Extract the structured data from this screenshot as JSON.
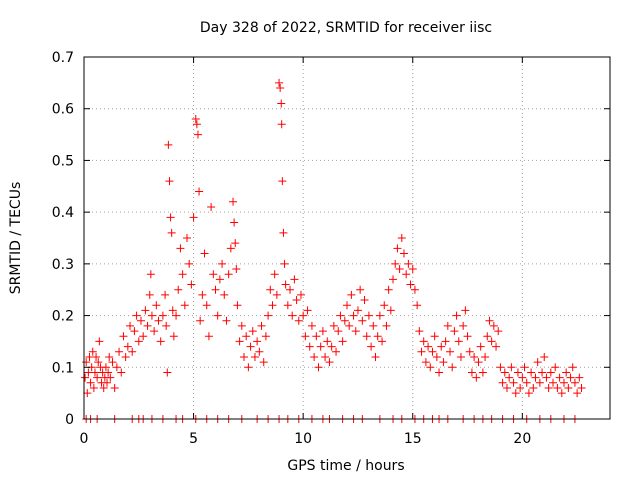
{
  "chart_data": {
    "type": "scatter",
    "title": "Day 328 of 2022, SRMTID for receiver iisc",
    "xlabel": "GPS time / hours",
    "ylabel": "SRMTID / TECUs",
    "xlim": [
      0,
      24
    ],
    "ylim": [
      0,
      0.7
    ],
    "xticks": [
      0,
      5,
      10,
      15,
      20
    ],
    "xtick_labels": [
      "0",
      "5",
      "10",
      "15",
      "20"
    ],
    "yticks": [
      0,
      0.1,
      0.2,
      0.3,
      0.4,
      0.5,
      0.6,
      0.7
    ],
    "ytick_labels": [
      "0",
      "0.1",
      "0.2",
      "0.3",
      "0.4",
      "0.5",
      "0.6",
      "0.7"
    ],
    "grid": true,
    "marker": "+",
    "color": "#ff0000",
    "series": [
      {
        "name": "SRMTID",
        "points": [
          [
            0.05,
            0.08
          ],
          [
            0.1,
            0.11
          ],
          [
            0.15,
            0.05
          ],
          [
            0.2,
            0.09
          ],
          [
            0.25,
            0.12
          ],
          [
            0.3,
            0.07
          ],
          [
            0.35,
            0.1
          ],
          [
            0.4,
            0.13
          ],
          [
            0.45,
            0.06
          ],
          [
            0.5,
            0.09
          ],
          [
            0.55,
            0.12
          ],
          [
            0.6,
            0.08
          ],
          [
            0.65,
            0.11
          ],
          [
            0.7,
            0.15
          ],
          [
            0.75,
            0.1
          ],
          [
            0.8,
            0.07
          ],
          [
            0.85,
            0.09
          ],
          [
            0.9,
            0.06
          ],
          [
            0.95,
            0.08
          ],
          [
            1.0,
            0.1
          ],
          [
            1.05,
            0.07
          ],
          [
            1.1,
            0.09
          ],
          [
            1.15,
            0.12
          ],
          [
            1.2,
            0.08
          ],
          [
            1.3,
            0.11
          ],
          [
            1.4,
            0.06
          ],
          [
            1.5,
            0.1
          ],
          [
            1.6,
            0.13
          ],
          [
            1.7,
            0.09
          ],
          [
            1.8,
            0.16
          ],
          [
            1.9,
            0.12
          ],
          [
            2.0,
            0.14
          ],
          [
            2.1,
            0.18
          ],
          [
            2.2,
            0.13
          ],
          [
            2.3,
            0.17
          ],
          [
            2.4,
            0.2
          ],
          [
            2.5,
            0.15
          ],
          [
            2.6,
            0.19
          ],
          [
            2.7,
            0.16
          ],
          [
            2.8,
            0.21
          ],
          [
            2.9,
            0.18
          ],
          [
            3.0,
            0.24
          ],
          [
            3.05,
            0.28
          ],
          [
            3.1,
            0.2
          ],
          [
            3.2,
            0.17
          ],
          [
            3.3,
            0.22
          ],
          [
            3.4,
            0.19
          ],
          [
            3.5,
            0.15
          ],
          [
            3.6,
            0.2
          ],
          [
            3.7,
            0.24
          ],
          [
            3.75,
            0.18
          ],
          [
            3.8,
            0.09
          ],
          [
            3.85,
            0.53
          ],
          [
            3.9,
            0.46
          ],
          [
            3.95,
            0.39
          ],
          [
            4.0,
            0.36
          ],
          [
            4.05,
            0.21
          ],
          [
            4.1,
            0.16
          ],
          [
            4.2,
            0.2
          ],
          [
            4.3,
            0.25
          ],
          [
            4.4,
            0.33
          ],
          [
            4.5,
            0.28
          ],
          [
            4.6,
            0.22
          ],
          [
            4.7,
            0.35
          ],
          [
            4.8,
            0.3
          ],
          [
            4.9,
            0.26
          ],
          [
            5.0,
            0.39
          ],
          [
            5.1,
            0.58
          ],
          [
            5.15,
            0.57
          ],
          [
            5.2,
            0.55
          ],
          [
            5.25,
            0.44
          ],
          [
            5.3,
            0.19
          ],
          [
            5.4,
            0.24
          ],
          [
            5.5,
            0.32
          ],
          [
            5.6,
            0.22
          ],
          [
            5.7,
            0.16
          ],
          [
            5.8,
            0.41
          ],
          [
            5.9,
            0.28
          ],
          [
            6.0,
            0.25
          ],
          [
            6.1,
            0.2
          ],
          [
            6.2,
            0.27
          ],
          [
            6.3,
            0.3
          ],
          [
            6.4,
            0.24
          ],
          [
            6.5,
            0.19
          ],
          [
            6.6,
            0.28
          ],
          [
            6.7,
            0.33
          ],
          [
            6.8,
            0.42
          ],
          [
            6.85,
            0.38
          ],
          [
            6.9,
            0.34
          ],
          [
            6.95,
            0.29
          ],
          [
            7.0,
            0.22
          ],
          [
            7.1,
            0.15
          ],
          [
            7.2,
            0.18
          ],
          [
            7.3,
            0.12
          ],
          [
            7.4,
            0.16
          ],
          [
            7.5,
            0.1
          ],
          [
            7.6,
            0.14
          ],
          [
            7.7,
            0.17
          ],
          [
            7.8,
            0.12
          ],
          [
            7.9,
            0.15
          ],
          [
            8.0,
            0.13
          ],
          [
            8.1,
            0.18
          ],
          [
            8.2,
            0.11
          ],
          [
            8.3,
            0.16
          ],
          [
            8.4,
            0.2
          ],
          [
            8.5,
            0.25
          ],
          [
            8.6,
            0.22
          ],
          [
            8.7,
            0.28
          ],
          [
            8.8,
            0.24
          ],
          [
            8.9,
            0.65
          ],
          [
            8.95,
            0.64
          ],
          [
            9.0,
            0.61
          ],
          [
            9.02,
            0.57
          ],
          [
            9.05,
            0.46
          ],
          [
            9.1,
            0.36
          ],
          [
            9.15,
            0.3
          ],
          [
            9.2,
            0.26
          ],
          [
            9.3,
            0.22
          ],
          [
            9.4,
            0.25
          ],
          [
            9.5,
            0.2
          ],
          [
            9.6,
            0.27
          ],
          [
            9.7,
            0.23
          ],
          [
            9.8,
            0.19
          ],
          [
            9.9,
            0.24
          ],
          [
            10.0,
            0.2
          ],
          [
            10.1,
            0.16
          ],
          [
            10.2,
            0.21
          ],
          [
            10.3,
            0.14
          ],
          [
            10.4,
            0.18
          ],
          [
            10.5,
            0.12
          ],
          [
            10.6,
            0.16
          ],
          [
            10.7,
            0.1
          ],
          [
            10.8,
            0.14
          ],
          [
            10.9,
            0.17
          ],
          [
            11.0,
            0.12
          ],
          [
            11.1,
            0.15
          ],
          [
            11.2,
            0.11
          ],
          [
            11.3,
            0.14
          ],
          [
            11.4,
            0.18
          ],
          [
            11.5,
            0.13
          ],
          [
            11.6,
            0.17
          ],
          [
            11.7,
            0.2
          ],
          [
            11.8,
            0.15
          ],
          [
            11.9,
            0.19
          ],
          [
            12.0,
            0.22
          ],
          [
            12.1,
            0.18
          ],
          [
            12.2,
            0.24
          ],
          [
            12.3,
            0.2
          ],
          [
            12.4,
            0.17
          ],
          [
            12.5,
            0.21
          ],
          [
            12.6,
            0.25
          ],
          [
            12.7,
            0.19
          ],
          [
            12.8,
            0.23
          ],
          [
            12.9,
            0.16
          ],
          [
            13.0,
            0.2
          ],
          [
            13.1,
            0.14
          ],
          [
            13.2,
            0.18
          ],
          [
            13.3,
            0.12
          ],
          [
            13.4,
            0.16
          ],
          [
            13.5,
            0.2
          ],
          [
            13.6,
            0.15
          ],
          [
            13.7,
            0.22
          ],
          [
            13.8,
            0.18
          ],
          [
            13.9,
            0.25
          ],
          [
            14.0,
            0.21
          ],
          [
            14.1,
            0.27
          ],
          [
            14.2,
            0.3
          ],
          [
            14.3,
            0.33
          ],
          [
            14.4,
            0.29
          ],
          [
            14.5,
            0.35
          ],
          [
            14.6,
            0.32
          ],
          [
            14.7,
            0.28
          ],
          [
            14.8,
            0.3
          ],
          [
            14.9,
            0.26
          ],
          [
            15.0,
            0.29
          ],
          [
            15.1,
            0.25
          ],
          [
            15.2,
            0.22
          ],
          [
            15.3,
            0.17
          ],
          [
            15.4,
            0.13
          ],
          [
            15.5,
            0.15
          ],
          [
            15.6,
            0.11
          ],
          [
            15.7,
            0.14
          ],
          [
            15.8,
            0.1
          ],
          [
            15.9,
            0.13
          ],
          [
            16.0,
            0.16
          ],
          [
            16.1,
            0.12
          ],
          [
            16.2,
            0.09
          ],
          [
            16.3,
            0.14
          ],
          [
            16.4,
            0.11
          ],
          [
            16.5,
            0.15
          ],
          [
            16.6,
            0.18
          ],
          [
            16.7,
            0.13
          ],
          [
            16.8,
            0.1
          ],
          [
            16.9,
            0.17
          ],
          [
            17.0,
            0.2
          ],
          [
            17.1,
            0.15
          ],
          [
            17.2,
            0.12
          ],
          [
            17.3,
            0.18
          ],
          [
            17.4,
            0.21
          ],
          [
            17.5,
            0.16
          ],
          [
            17.6,
            0.13
          ],
          [
            17.7,
            0.09
          ],
          [
            17.8,
            0.12
          ],
          [
            17.9,
            0.08
          ],
          [
            18.0,
            0.11
          ],
          [
            18.1,
            0.14
          ],
          [
            18.2,
            0.09
          ],
          [
            18.3,
            0.12
          ],
          [
            18.4,
            0.16
          ],
          [
            18.5,
            0.19
          ],
          [
            18.6,
            0.15
          ],
          [
            18.7,
            0.18
          ],
          [
            18.8,
            0.14
          ],
          [
            18.9,
            0.17
          ],
          [
            19.0,
            0.1
          ],
          [
            19.1,
            0.07
          ],
          [
            19.2,
            0.09
          ],
          [
            19.3,
            0.06
          ],
          [
            19.4,
            0.08
          ],
          [
            19.5,
            0.1
          ],
          [
            19.6,
            0.07
          ],
          [
            19.7,
            0.05
          ],
          [
            19.8,
            0.09
          ],
          [
            19.9,
            0.06
          ],
          [
            20.0,
            0.08
          ],
          [
            20.1,
            0.1
          ],
          [
            20.2,
            0.07
          ],
          [
            20.3,
            0.05
          ],
          [
            20.4,
            0.09
          ],
          [
            20.5,
            0.06
          ],
          [
            20.6,
            0.08
          ],
          [
            20.7,
            0.11
          ],
          [
            20.8,
            0.07
          ],
          [
            20.9,
            0.09
          ],
          [
            21.0,
            0.12
          ],
          [
            21.1,
            0.08
          ],
          [
            21.2,
            0.06
          ],
          [
            21.3,
            0.09
          ],
          [
            21.4,
            0.07
          ],
          [
            21.5,
            0.1
          ],
          [
            21.6,
            0.06
          ],
          [
            21.7,
            0.08
          ],
          [
            21.8,
            0.05
          ],
          [
            21.9,
            0.07
          ],
          [
            22.0,
            0.09
          ],
          [
            22.1,
            0.06
          ],
          [
            22.2,
            0.08
          ],
          [
            22.3,
            0.1
          ],
          [
            22.4,
            0.07
          ],
          [
            22.5,
            0.05
          ],
          [
            22.6,
            0.08
          ],
          [
            22.7,
            0.06
          ],
          [
            0.1,
            0.0
          ],
          [
            0.3,
            0.0
          ],
          [
            0.6,
            0.0
          ],
          [
            1.4,
            0.0
          ],
          [
            2.2,
            0.0
          ],
          [
            2.5,
            0.0
          ],
          [
            2.7,
            0.0
          ],
          [
            3.1,
            0.0
          ],
          [
            3.6,
            0.0
          ],
          [
            4.2,
            0.0
          ],
          [
            4.5,
            0.0
          ],
          [
            5.1,
            0.0
          ],
          [
            5.6,
            0.0
          ],
          [
            6.1,
            0.0
          ],
          [
            6.6,
            0.0
          ],
          [
            7.2,
            0.0
          ],
          [
            7.9,
            0.0
          ],
          [
            8.4,
            0.0
          ],
          [
            8.9,
            0.0
          ],
          [
            9.3,
            0.0
          ],
          [
            9.8,
            0.0
          ],
          [
            10.4,
            0.0
          ],
          [
            10.9,
            0.0
          ],
          [
            11.2,
            0.0
          ],
          [
            11.8,
            0.0
          ],
          [
            12.3,
            0.0
          ],
          [
            12.7,
            0.0
          ],
          [
            13.5,
            0.0
          ],
          [
            14.1,
            0.0
          ],
          [
            14.5,
            0.0
          ],
          [
            15.1,
            0.0
          ],
          [
            15.5,
            0.0
          ],
          [
            15.9,
            0.0
          ],
          [
            16.2,
            0.0
          ],
          [
            16.6,
            0.0
          ],
          [
            17.3,
            0.0
          ],
          [
            17.8,
            0.0
          ],
          [
            18.2,
            0.0
          ],
          [
            18.6,
            0.0
          ],
          [
            19.1,
            0.0
          ],
          [
            19.6,
            0.0
          ],
          [
            20.2,
            0.0
          ],
          [
            20.8,
            0.0
          ],
          [
            21.3,
            0.0
          ],
          [
            21.9,
            0.0
          ],
          [
            22.4,
            0.0
          ]
        ]
      }
    ]
  }
}
